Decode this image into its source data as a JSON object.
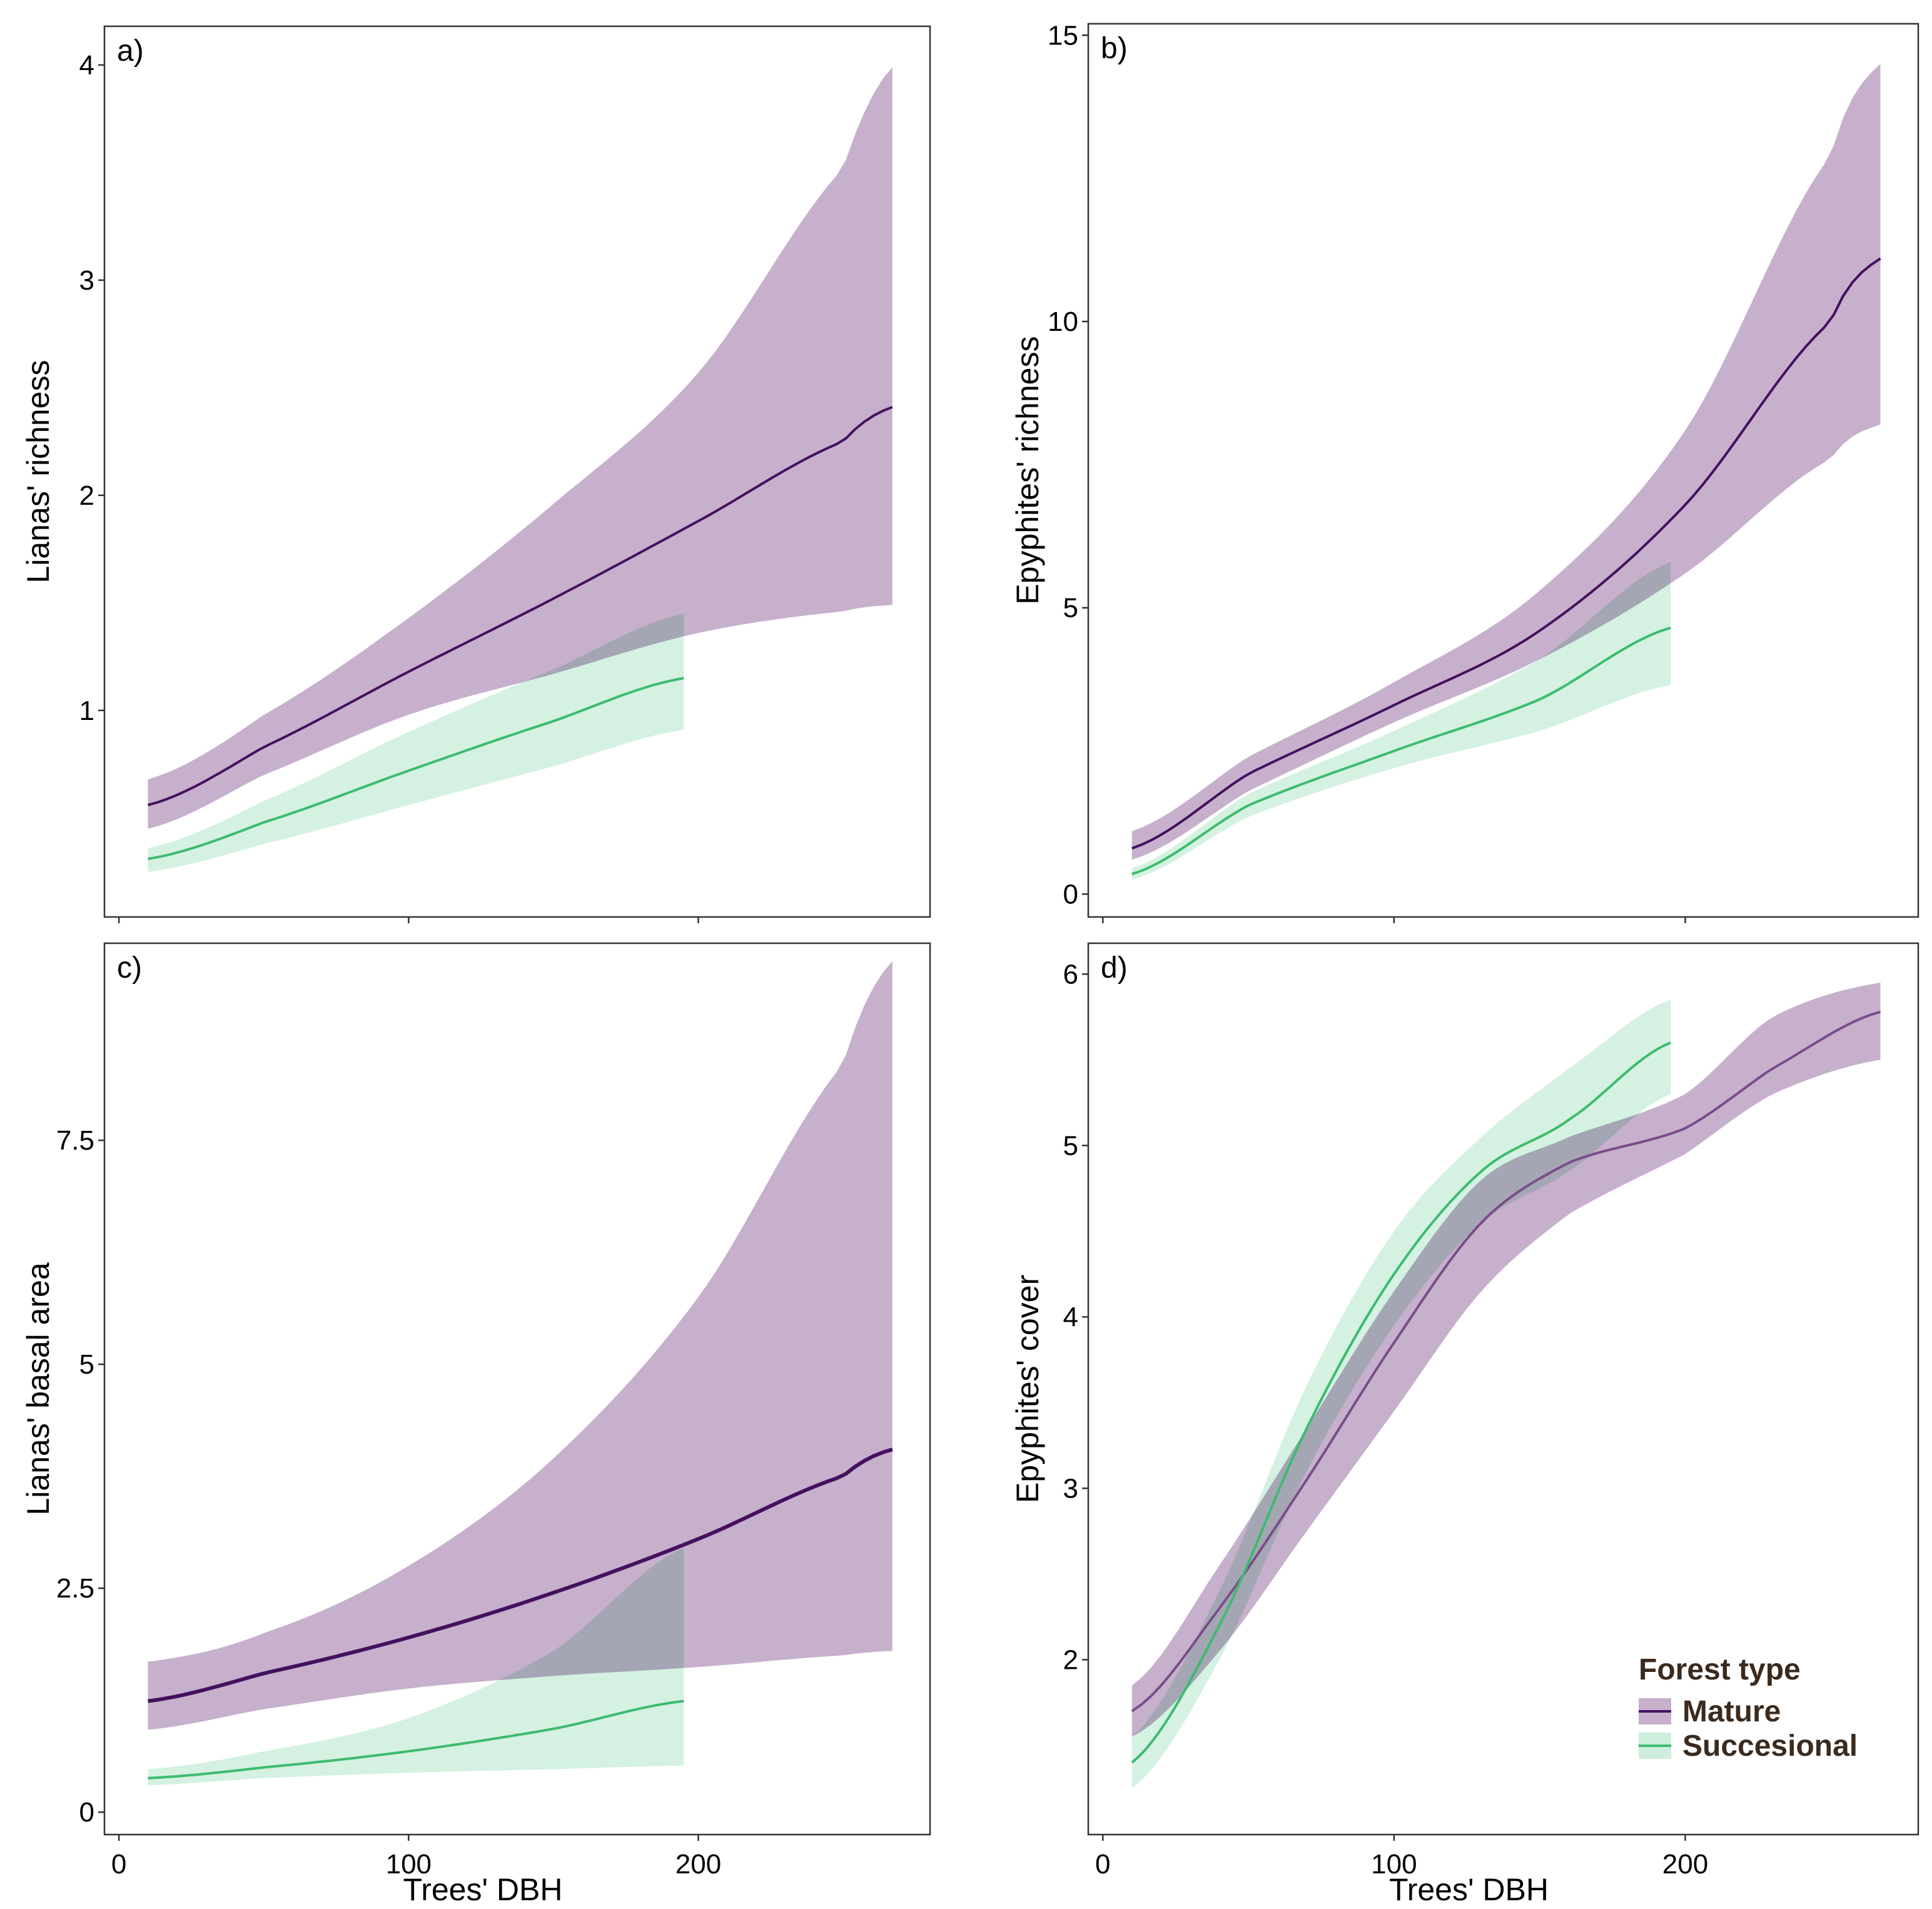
{
  "figure": {
    "x_axis_label": "Trees' DBH",
    "legend": {
      "title": "Forest type",
      "placement": "bottom-right of panel d",
      "items": [
        {
          "label": "Mature",
          "key": "mature"
        },
        {
          "label": "Succesional",
          "key": "succesional"
        }
      ]
    },
    "colors": {
      "mature_band": "#c6b0cc",
      "mature_line": "#44105f",
      "mature_line_d": "#7a4c8a",
      "succesional_band": "#cdeedc",
      "succesional_line": "#3dbb6f",
      "overlap_band": "#9fb7ac"
    }
  },
  "chart_data": [
    {
      "panel": "a)",
      "type": "line",
      "title": "",
      "xlabel": "",
      "ylabel": "Lianas' richness",
      "xlim": [
        -5,
        280
      ],
      "ylim": [
        0.04,
        4.18
      ],
      "xticks": [
        0,
        100,
        200
      ],
      "xticklabels": [],
      "yticks": [
        1,
        2,
        3,
        4
      ],
      "yticklabels": [
        "1",
        "2",
        "3",
        "4"
      ],
      "grid": false,
      "series": [
        {
          "name": "Mature",
          "x": [
            10,
            50,
            100,
            150,
            200,
            250,
            267
          ],
          "y": [
            0.56,
            0.83,
            1.18,
            1.52,
            1.88,
            2.25,
            2.41
          ],
          "lower": [
            0.45,
            0.7,
            0.98,
            1.17,
            1.36,
            1.46,
            1.49
          ],
          "upper": [
            0.68,
            0.98,
            1.43,
            1.96,
            2.57,
            3.52,
            3.99
          ]
        },
        {
          "name": "Succesional",
          "x": [
            10,
            50,
            100,
            150,
            195
          ],
          "y": [
            0.31,
            0.48,
            0.72,
            0.95,
            1.15
          ],
          "lower": [
            0.25,
            0.38,
            0.56,
            0.74,
            0.91
          ],
          "upper": [
            0.36,
            0.58,
            0.9,
            1.19,
            1.45
          ]
        }
      ]
    },
    {
      "panel": "b)",
      "type": "line",
      "title": "",
      "xlabel": "",
      "ylabel": "Epyphites' richness",
      "xlim": [
        -5,
        280
      ],
      "ylim": [
        -0.4,
        15.2
      ],
      "xticks": [
        0,
        100,
        200
      ],
      "xticklabels": [],
      "yticks": [
        0,
        5,
        10,
        15
      ],
      "yticklabels": [
        "0",
        "5",
        "10",
        "15"
      ],
      "grid": false,
      "series": [
        {
          "name": "Mature",
          "x": [
            10,
            50,
            100,
            150,
            200,
            250,
            267
          ],
          "y": [
            0.8,
            2.1,
            3.3,
            4.6,
            6.8,
            10.0,
            11.1
          ],
          "lower": [
            0.6,
            1.8,
            3.0,
            4.1,
            5.6,
            7.6,
            8.2
          ],
          "upper": [
            1.1,
            2.4,
            3.7,
            5.3,
            8.1,
            12.9,
            14.5
          ]
        },
        {
          "name": "Succesional",
          "x": [
            10,
            50,
            100,
            150,
            195
          ],
          "y": [
            0.35,
            1.55,
            2.5,
            3.4,
            4.65
          ],
          "lower": [
            0.25,
            1.35,
            2.2,
            2.85,
            3.65
          ],
          "upper": [
            0.45,
            1.75,
            2.85,
            4.1,
            5.8
          ]
        }
      ]
    },
    {
      "panel": "c)",
      "type": "line",
      "title": "",
      "xlabel": "Trees' DBH",
      "ylabel": "Lianas' basal area",
      "xlim": [
        -5,
        280
      ],
      "ylim": [
        -0.25,
        9.7
      ],
      "xticks": [
        0,
        100,
        200
      ],
      "xticklabels": [
        "0",
        "100",
        "200"
      ],
      "yticks": [
        0,
        2.5,
        5,
        7.5
      ],
      "yticklabels": [
        "0",
        "2.5",
        "5",
        "7.5"
      ],
      "grid": false,
      "series": [
        {
          "name": "Mature",
          "x": [
            10,
            50,
            100,
            150,
            200,
            250,
            267
          ],
          "y": [
            1.24,
            1.55,
            1.95,
            2.45,
            3.05,
            3.75,
            4.05
          ],
          "lower": [
            0.92,
            1.15,
            1.38,
            1.52,
            1.62,
            1.75,
            1.8
          ],
          "upper": [
            1.68,
            2.0,
            2.75,
            3.95,
            5.75,
            8.35,
            9.5
          ]
        },
        {
          "name": "Succesional",
          "x": [
            10,
            50,
            100,
            150,
            195
          ],
          "y": [
            0.38,
            0.5,
            0.68,
            0.93,
            1.24
          ],
          "lower": [
            0.3,
            0.38,
            0.44,
            0.48,
            0.52
          ],
          "upper": [
            0.48,
            0.68,
            1.05,
            1.8,
            2.95
          ]
        }
      ]
    },
    {
      "panel": "d)",
      "type": "line",
      "title": "",
      "xlabel": "Trees' DBH",
      "ylabel": "Epyphites' cover",
      "xlim": [
        -5,
        280
      ],
      "ylim": [
        0.98,
        6.18
      ],
      "xticks": [
        0,
        100,
        200
      ],
      "xticklabels": [
        "0",
        "100",
        "200"
      ],
      "yticks": [
        2,
        3,
        4,
        5,
        6
      ],
      "yticklabels": [
        "2",
        "3",
        "4",
        "5",
        "6"
      ],
      "grid": false,
      "series": [
        {
          "name": "Mature",
          "x": [
            10,
            40,
            70,
            100,
            130,
            160,
            200,
            230,
            267
          ],
          "y": [
            1.7,
            2.3,
            3.05,
            3.85,
            4.55,
            4.9,
            5.1,
            5.45,
            5.78
          ],
          "lower": [
            1.55,
            2.05,
            2.75,
            3.45,
            4.15,
            4.6,
            4.95,
            5.3,
            5.5
          ],
          "upper": [
            1.85,
            2.55,
            3.35,
            4.15,
            4.8,
            5.05,
            5.3,
            5.75,
            5.95
          ]
        },
        {
          "name": "Succesional",
          "x": [
            10,
            40,
            70,
            100,
            130,
            160,
            195
          ],
          "y": [
            1.4,
            2.2,
            3.35,
            4.25,
            4.85,
            5.15,
            5.6
          ],
          "lower": [
            1.25,
            2.0,
            3.1,
            3.95,
            4.55,
            4.85,
            5.3
          ],
          "upper": [
            1.55,
            2.4,
            3.6,
            4.5,
            5.05,
            5.45,
            5.85
          ]
        }
      ]
    }
  ]
}
